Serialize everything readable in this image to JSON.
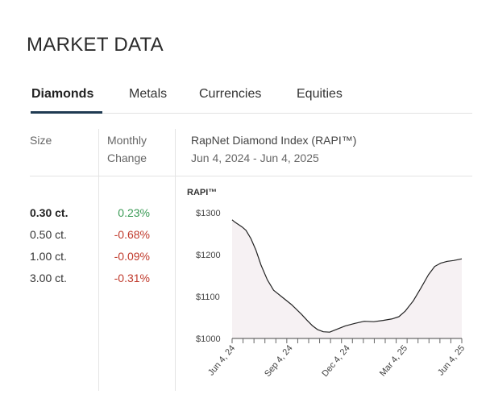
{
  "page_title": "MARKET DATA",
  "tabs": [
    {
      "label": "Diamonds",
      "active": true
    },
    {
      "label": "Metals",
      "active": false
    },
    {
      "label": "Currencies",
      "active": false
    },
    {
      "label": "Equities",
      "active": false
    }
  ],
  "table": {
    "col_size": "Size",
    "col_change_line1": "Monthly",
    "col_change_line2": "Change",
    "rows": [
      {
        "size": "0.30 ct.",
        "change": "0.23%",
        "direction": "up",
        "selected": true
      },
      {
        "size": "0.50 ct.",
        "change": "-0.68%",
        "direction": "down",
        "selected": false
      },
      {
        "size": "1.00 ct.",
        "change": "-0.09%",
        "direction": "down",
        "selected": false
      },
      {
        "size": "3.00 ct.",
        "change": "-0.31%",
        "direction": "down",
        "selected": false
      }
    ]
  },
  "index_header": {
    "title": "RapNet Diamond Index (RAPI™)",
    "date_range": "Jun 4, 2024 - Jun 4, 2025"
  },
  "colors": {
    "accent": "#1f3a52",
    "positive": "#3a9a55",
    "negative": "#c0392b",
    "area_fill": "#f6f1f3",
    "line": "#222222"
  },
  "chart_data": {
    "type": "area",
    "title": "",
    "ylabel": "RAPI™",
    "xlabel": "",
    "ylim": [
      1000,
      1300
    ],
    "y_ticks": [
      1000,
      1100,
      1200,
      1300
    ],
    "y_tick_labels": [
      "$1000",
      "$1100",
      "$1200",
      "$1300"
    ],
    "x_tick_labels": [
      "Jun 4, 24",
      "Sep 4, 24",
      "Dec 4, 24",
      "Mar 4, 25",
      "Jun 4, 25"
    ],
    "x_range_days": [
      0,
      365
    ],
    "series": [
      {
        "x": [
          0,
          4,
          8,
          12,
          16,
          22,
          30,
          38,
          46,
          56,
          66,
          80,
          95,
          110,
          120,
          128,
          136,
          145,
          155,
          165,
          180,
          195,
          210,
          225,
          240,
          255,
          265,
          275,
          288,
          300,
          312,
          322,
          332,
          342,
          352,
          365
        ],
        "y": [
          1283,
          1278,
          1274,
          1270,
          1266,
          1258,
          1238,
          1210,
          1175,
          1140,
          1115,
          1098,
          1080,
          1058,
          1042,
          1030,
          1021,
          1016,
          1015,
          1021,
          1030,
          1036,
          1041,
          1040,
          1043,
          1047,
          1052,
          1065,
          1090,
          1120,
          1152,
          1172,
          1180,
          1184,
          1186,
          1190
        ]
      }
    ],
    "grid": false,
    "legend": "none"
  }
}
